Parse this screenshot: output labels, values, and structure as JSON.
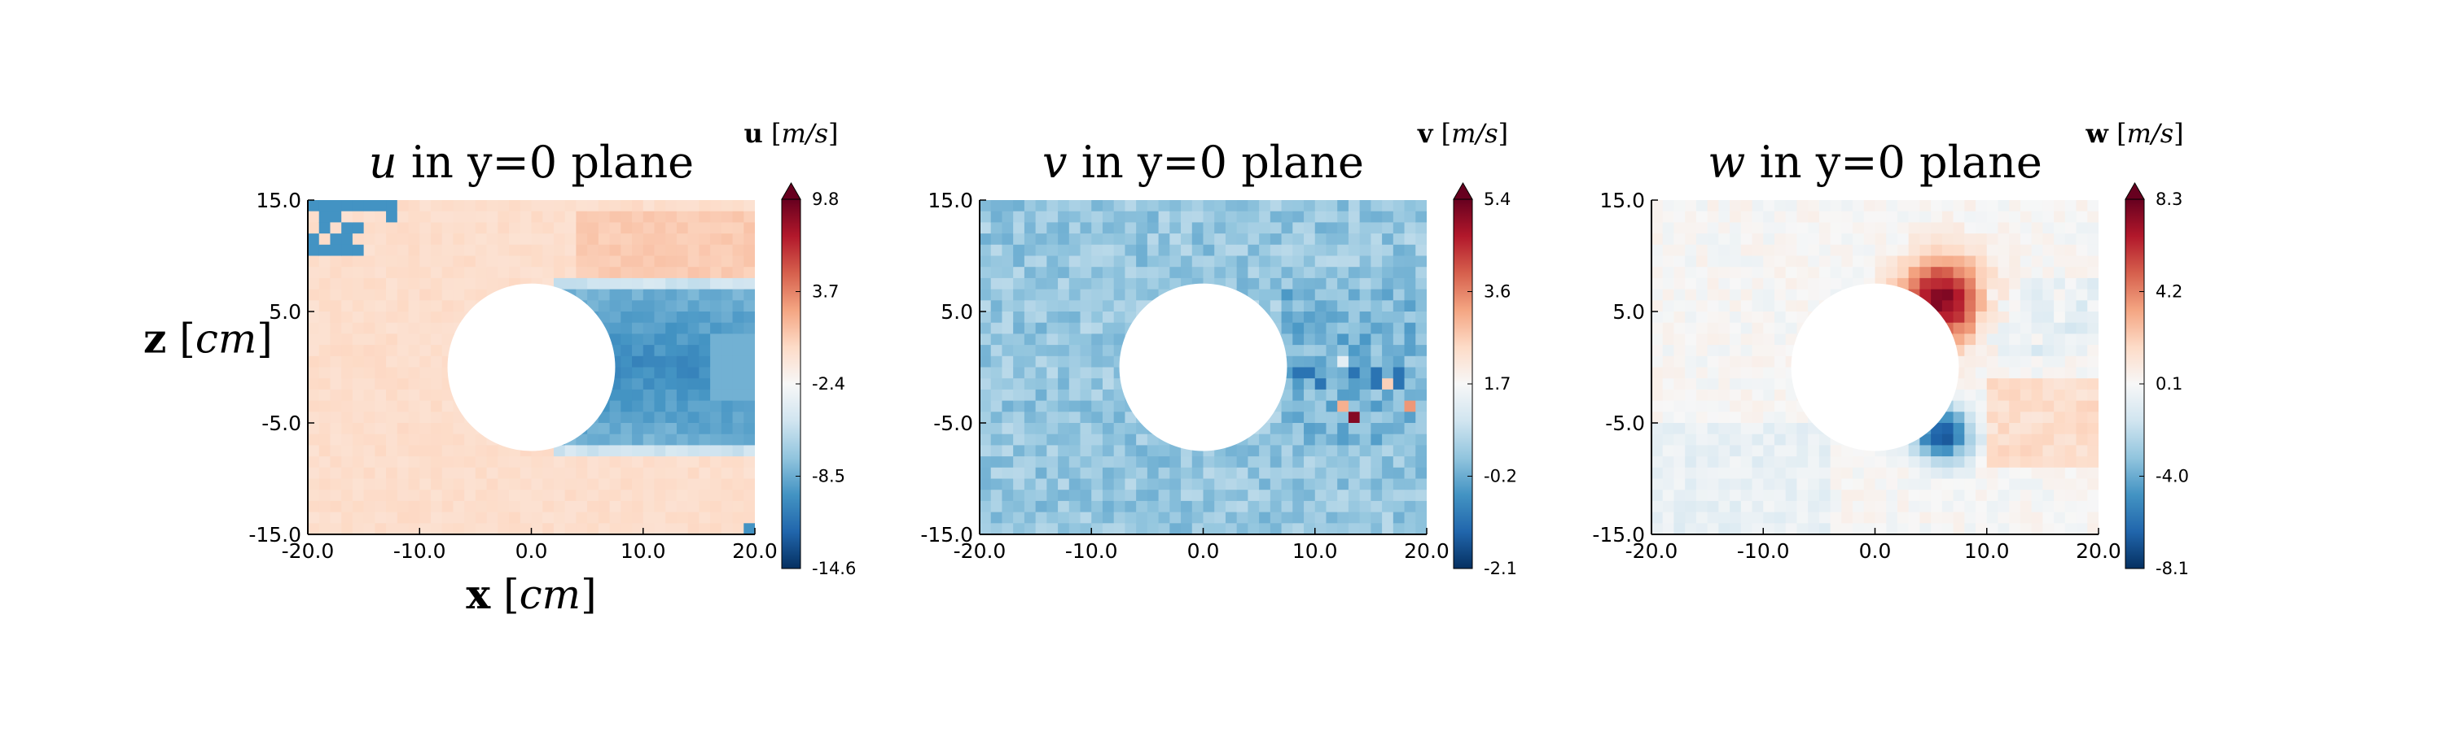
{
  "chart_data": [
    {
      "type": "heatmap",
      "title_var": "u",
      "title_rest": " in y=0 plane",
      "xlim": [
        -20,
        20
      ],
      "ylim": [
        -15,
        15
      ],
      "xticks": [
        "-20.0",
        "-10.0",
        "0.0",
        "10.0",
        "20.0"
      ],
      "yticks": [
        "15.0",
        "5.0",
        "-5.0",
        "-15.0"
      ],
      "xlabel_var": "x",
      "xlabel_unit": "cm",
      "ylabel_var": "z",
      "ylabel_unit": "cm",
      "obstacle": {
        "shape": "circle",
        "center": [
          0,
          0
        ],
        "radius": 7.5
      },
      "colorbar": {
        "var": "u",
        "unit": "m/s",
        "ticks": [
          "9.8",
          "3.7",
          "-2.4",
          "-8.5",
          "-14.6"
        ],
        "range": [
          -14.6,
          9.8
        ],
        "colormap": "RdBu_r",
        "extend": "max"
      }
    },
    {
      "type": "heatmap",
      "title_var": "v",
      "title_rest": " in y=0 plane",
      "xlim": [
        -20,
        20
      ],
      "ylim": [
        -15,
        15
      ],
      "xticks": [
        "-20.0",
        "-10.0",
        "0.0",
        "10.0",
        "20.0"
      ],
      "yticks": [
        "15.0",
        "5.0",
        "-5.0",
        "-15.0"
      ],
      "obstacle": {
        "shape": "circle",
        "center": [
          0,
          0
        ],
        "radius": 7.5
      },
      "colorbar": {
        "var": "v",
        "unit": "m/s",
        "ticks": [
          "5.4",
          "3.6",
          "1.7",
          "-0.2",
          "-2.1"
        ],
        "range": [
          -2.1,
          5.4
        ],
        "colormap": "RdBu_r",
        "extend": "max"
      }
    },
    {
      "type": "heatmap",
      "title_var": "w",
      "title_rest": " in y=0 plane",
      "xlim": [
        -20,
        20
      ],
      "ylim": [
        -15,
        15
      ],
      "xticks": [
        "-20.0",
        "-10.0",
        "0.0",
        "10.0",
        "20.0"
      ],
      "yticks": [
        "15.0",
        "5.0",
        "-5.0",
        "-15.0"
      ],
      "obstacle": {
        "shape": "circle",
        "center": [
          0,
          0
        ],
        "radius": 7.5
      },
      "colorbar": {
        "var": "w",
        "unit": "m/s",
        "ticks": [
          "8.3",
          "4.2",
          "0.1",
          "-4.0",
          "-8.1"
        ],
        "range": [
          -8.1,
          8.3
        ],
        "colormap": "RdBu_r",
        "extend": "max"
      }
    }
  ]
}
